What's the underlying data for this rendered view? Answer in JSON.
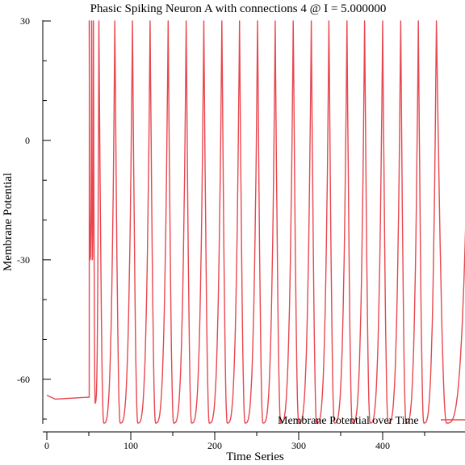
{
  "chart_data": {
    "type": "line",
    "title": "Phasic Spiking Neuron A with connections 4 @ I = 5.000000",
    "xlabel": "Time Series",
    "ylabel": "Membrane Potential",
    "xlim": [
      0,
      500
    ],
    "ylim": [
      -71,
      30
    ],
    "x_ticks": [
      0,
      100,
      200,
      300,
      400
    ],
    "y_ticks": [
      30,
      0,
      -30,
      -60
    ],
    "x_tick_labels": [
      "0",
      "100",
      "200",
      "300",
      "400"
    ],
    "y_tick_labels": [
      "30",
      "0",
      "-30",
      "-60"
    ],
    "grid": false,
    "legend": {
      "position": "bottom-right",
      "entries": [
        "Membrane Potential over Time"
      ]
    },
    "series": [
      {
        "name": "Membrane Potential over Time",
        "color": "#e8474f",
        "rest_start": -64.0,
        "rest_min": -65.0,
        "pre_spike_level": -64.5,
        "spike_peak": 30,
        "reset_level": -71,
        "spike_times": [
          50.5,
          53.5,
          55.5,
          62,
          81,
          102,
          123,
          144.5,
          166,
          187,
          208.5,
          229.5,
          251,
          272,
          293.5,
          315,
          336,
          357.5,
          378.5,
          400,
          421.5,
          442.5,
          464
        ]
      }
    ]
  }
}
